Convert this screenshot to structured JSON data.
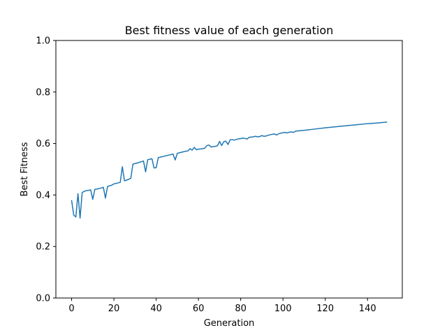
{
  "chart_data": {
    "type": "line",
    "title": "Best fitness value of each generation",
    "xlabel": "Generation",
    "ylabel": "Best Fitness",
    "xlim": [
      -7.45,
      156.45
    ],
    "ylim": [
      0.0,
      1.0
    ],
    "xticks": [
      0,
      20,
      40,
      60,
      80,
      100,
      120,
      140
    ],
    "yticks": [
      0.0,
      0.2,
      0.4,
      0.6,
      0.8,
      1.0
    ],
    "xtick_labels": [
      "0",
      "20",
      "40",
      "60",
      "80",
      "100",
      "120",
      "140"
    ],
    "ytick_labels": [
      "0.0",
      "0.2",
      "0.4",
      "0.6",
      "0.8",
      "1.0"
    ],
    "grid": false,
    "series": [
      {
        "color": "#1f77b4",
        "x": [
          0,
          1,
          2,
          3,
          4,
          5,
          6,
          7,
          8,
          9,
          10,
          11,
          12,
          13,
          14,
          15,
          16,
          17,
          18,
          19,
          20,
          21,
          22,
          23,
          24,
          25,
          26,
          27,
          28,
          29,
          30,
          31,
          32,
          33,
          34,
          35,
          36,
          37,
          38,
          39,
          40,
          41,
          42,
          43,
          44,
          45,
          46,
          47,
          48,
          49,
          50,
          51,
          52,
          53,
          54,
          55,
          56,
          57,
          58,
          59,
          60,
          61,
          62,
          63,
          64,
          65,
          66,
          67,
          68,
          69,
          70,
          71,
          72,
          73,
          74,
          75,
          76,
          77,
          78,
          79,
          80,
          81,
          82,
          83,
          84,
          85,
          86,
          87,
          88,
          89,
          90,
          91,
          92,
          93,
          94,
          95,
          96,
          97,
          98,
          99,
          100,
          101,
          102,
          103,
          104,
          105,
          106,
          110,
          115,
          120,
          125,
          130,
          135,
          140,
          145,
          149
        ],
        "y": [
          0.378,
          0.322,
          0.315,
          0.405,
          0.31,
          0.41,
          0.414,
          0.417,
          0.418,
          0.42,
          0.383,
          0.422,
          0.423,
          0.425,
          0.427,
          0.43,
          0.388,
          0.433,
          0.436,
          0.438,
          0.443,
          0.445,
          0.447,
          0.449,
          0.51,
          0.455,
          0.458,
          0.461,
          0.465,
          0.52,
          0.522,
          0.524,
          0.527,
          0.529,
          0.532,
          0.49,
          0.537,
          0.539,
          0.541,
          0.505,
          0.506,
          0.545,
          0.547,
          0.549,
          0.551,
          0.553,
          0.555,
          0.557,
          0.559,
          0.536,
          0.562,
          0.564,
          0.566,
          0.568,
          0.57,
          0.571,
          0.58,
          0.574,
          0.585,
          0.576,
          0.578,
          0.579,
          0.58,
          0.582,
          0.592,
          0.594,
          0.586,
          0.588,
          0.589,
          0.591,
          0.608,
          0.592,
          0.607,
          0.609,
          0.596,
          0.614,
          0.615,
          0.613,
          0.616,
          0.618,
          0.619,
          0.621,
          0.62,
          0.617,
          0.624,
          0.625,
          0.626,
          0.628,
          0.626,
          0.627,
          0.631,
          0.628,
          0.629,
          0.632,
          0.634,
          0.636,
          0.637,
          0.633,
          0.638,
          0.64,
          0.642,
          0.643,
          0.641,
          0.644,
          0.645,
          0.643,
          0.648,
          0.651,
          0.656,
          0.661,
          0.665,
          0.669,
          0.673,
          0.677,
          0.68,
          0.683
        ]
      }
    ]
  }
}
